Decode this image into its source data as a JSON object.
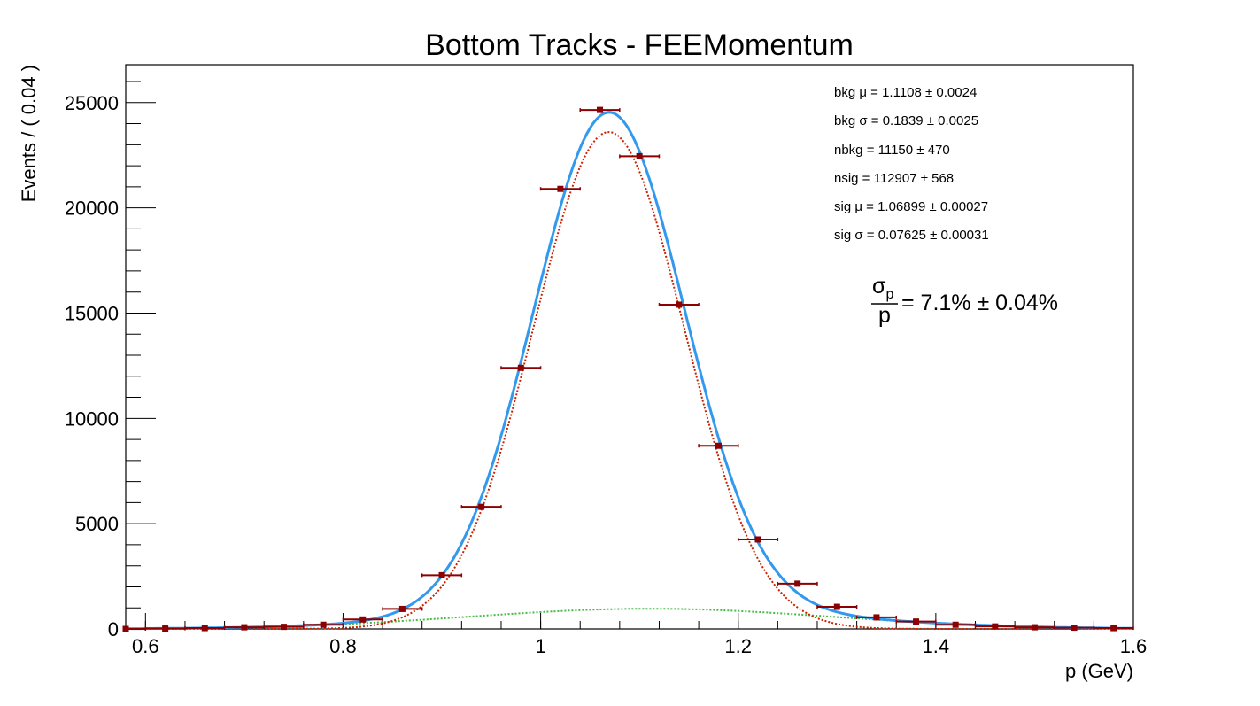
{
  "chart_data": {
    "type": "scatter",
    "title": "Bottom Tracks - FEEMomentum",
    "xlabel": "p (GeV)",
    "ylabel": "Events / ( 0.04 )",
    "xlim": [
      0.58,
      1.6
    ],
    "ylim": [
      0,
      26800
    ],
    "x_ticks": [
      "0.6",
      "0.8",
      "1",
      "1.2",
      "1.4",
      "1.6"
    ],
    "x_tick_values": [
      0.6,
      0.8,
      1.0,
      1.2,
      1.4,
      1.6
    ],
    "y_ticks": [
      "0",
      "5000",
      "10000",
      "15000",
      "20000",
      "25000"
    ],
    "y_tick_values": [
      0,
      5000,
      10000,
      15000,
      20000,
      25000
    ],
    "bin_half_width": 0.02,
    "series": [
      {
        "kind": "data-points",
        "color": "#8b0000",
        "x": [
          0.58,
          0.62,
          0.66,
          0.7,
          0.74,
          0.78,
          0.82,
          0.86,
          0.9,
          0.94,
          0.98,
          1.02,
          1.06,
          1.1,
          1.14,
          1.18,
          1.22,
          1.26,
          1.3,
          1.34,
          1.38,
          1.42,
          1.46,
          1.5,
          1.54,
          1.58
        ],
        "y": [
          0,
          20,
          40,
          80,
          100,
          200,
          450,
          950,
          2550,
          5800,
          12400,
          20900,
          24650,
          22450,
          15400,
          8700,
          4250,
          2150,
          1050,
          550,
          350,
          200,
          120,
          80,
          60,
          40
        ]
      },
      {
        "kind": "total-fit",
        "color": "#3399ee",
        "signal_mu": 1.06899,
        "signal_sigma": 0.07625,
        "signal_peak": 23600,
        "background_mu": 1.1108,
        "background_sigma": 0.1839,
        "background_peak": 960
      },
      {
        "kind": "signal-component",
        "color": "#cc2200",
        "mu": 1.06899,
        "sigma": 0.07625,
        "peak": 23600
      },
      {
        "kind": "background-component",
        "color": "#44bb44",
        "mu": 1.1108,
        "sigma": 0.1839,
        "peak": 960
      }
    ],
    "stats": [
      "bkg μ =  1.1108 ± 0.0024",
      "bkg σ =  0.1839 ± 0.0025",
      "nbkg =  11150 ± 470",
      "nsig =  112907 ± 568",
      "sig μ =  1.06899 ± 0.00027",
      "sig σ =  0.07625 ± 0.00031"
    ],
    "resolution": {
      "numerator": "σ",
      "numerator_sub": "p",
      "denominator": "p",
      "value": "= 7.1% ± 0.04%"
    }
  }
}
